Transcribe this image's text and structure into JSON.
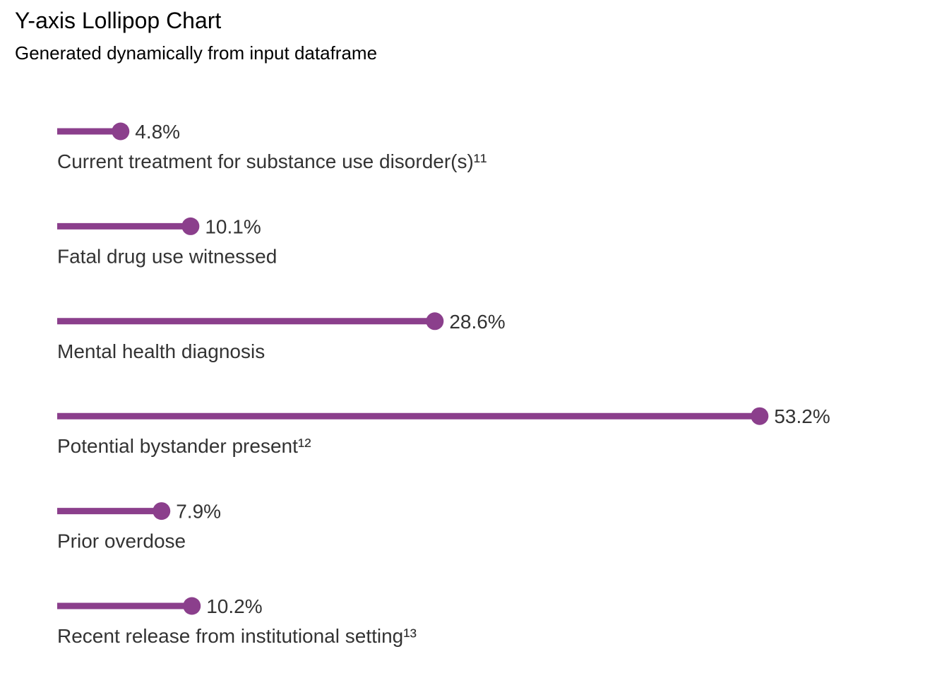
{
  "title": "Y-axis Lollipop Chart",
  "subtitle": "Generated dynamically from input dataframe",
  "chart_data": {
    "type": "lollipop",
    "orientation": "horizontal",
    "categories": [
      "Current treatment for substance use disorder(s)¹¹",
      "Fatal drug use witnessed",
      "Mental health diagnosis",
      "Potential bystander present¹²",
      "Prior overdose",
      "Recent release from institutional setting¹³"
    ],
    "values": [
      4.8,
      10.1,
      28.6,
      53.2,
      7.9,
      10.2
    ],
    "value_labels": [
      "4.8%",
      "10.1%",
      "28.6%",
      "53.2%",
      "7.9%",
      "10.2%"
    ],
    "unit": "%",
    "xlim": [
      0,
      60
    ],
    "grid": false,
    "legend": "none",
    "color": "#8b3f8c",
    "text_color": "#333333"
  }
}
